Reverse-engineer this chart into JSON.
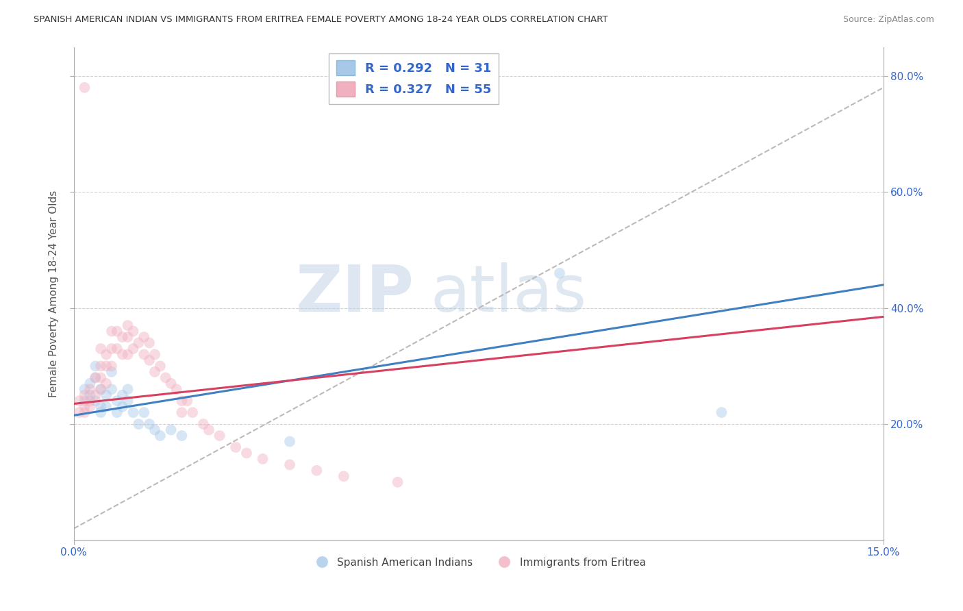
{
  "title": "SPANISH AMERICAN INDIAN VS IMMIGRANTS FROM ERITREA FEMALE POVERTY AMONG 18-24 YEAR OLDS CORRELATION CHART",
  "source": "Source: ZipAtlas.com",
  "ylabel": "Female Poverty Among 18-24 Year Olds",
  "xlim": [
    0.0,
    0.15
  ],
  "ylim": [
    0.0,
    0.85
  ],
  "yticks": [
    0.2,
    0.4,
    0.6,
    0.8
  ],
  "ytick_labels": [
    "20.0%",
    "40.0%",
    "60.0%",
    "80.0%"
  ],
  "xticks": [
    0.0,
    0.15
  ],
  "xtick_labels": [
    "0.0%",
    "15.0%"
  ],
  "watermark_zip": "ZIP",
  "watermark_atlas": "atlas",
  "legend_blue_label": "R = 0.292   N = 31",
  "legend_pink_label": "R = 0.327   N = 55",
  "blue_color": "#a8c8e8",
  "pink_color": "#f0b0c0",
  "blue_line_color": "#4080c0",
  "pink_line_color": "#d84060",
  "dashed_line_color": "#c0b8b8",
  "title_color": "#333333",
  "source_color": "#888888",
  "legend_text_color": "#3366cc",
  "axis_tick_color": "#3366cc",
  "blue_scatter_x": [
    0.002,
    0.002,
    0.003,
    0.003,
    0.004,
    0.004,
    0.004,
    0.005,
    0.005,
    0.005,
    0.006,
    0.006,
    0.007,
    0.007,
    0.008,
    0.008,
    0.009,
    0.009,
    0.01,
    0.01,
    0.011,
    0.012,
    0.013,
    0.014,
    0.015,
    0.016,
    0.018,
    0.02,
    0.04,
    0.09,
    0.12
  ],
  "blue_scatter_y": [
    0.24,
    0.26,
    0.27,
    0.25,
    0.3,
    0.28,
    0.24,
    0.26,
    0.23,
    0.22,
    0.25,
    0.23,
    0.29,
    0.26,
    0.24,
    0.22,
    0.25,
    0.23,
    0.26,
    0.24,
    0.22,
    0.2,
    0.22,
    0.2,
    0.19,
    0.18,
    0.19,
    0.18,
    0.17,
    0.46,
    0.22
  ],
  "pink_scatter_x": [
    0.001,
    0.001,
    0.002,
    0.002,
    0.002,
    0.003,
    0.003,
    0.003,
    0.004,
    0.004,
    0.005,
    0.005,
    0.005,
    0.005,
    0.006,
    0.006,
    0.006,
    0.007,
    0.007,
    0.007,
    0.008,
    0.008,
    0.009,
    0.009,
    0.01,
    0.01,
    0.01,
    0.011,
    0.011,
    0.012,
    0.013,
    0.013,
    0.014,
    0.014,
    0.015,
    0.015,
    0.016,
    0.017,
    0.018,
    0.019,
    0.02,
    0.02,
    0.021,
    0.022,
    0.024,
    0.025,
    0.027,
    0.03,
    0.032,
    0.035,
    0.04,
    0.045,
    0.05,
    0.06,
    0.002
  ],
  "pink_scatter_y": [
    0.22,
    0.24,
    0.25,
    0.23,
    0.22,
    0.24,
    0.26,
    0.23,
    0.28,
    0.25,
    0.33,
    0.3,
    0.28,
    0.26,
    0.32,
    0.3,
    0.27,
    0.36,
    0.33,
    0.3,
    0.36,
    0.33,
    0.35,
    0.32,
    0.37,
    0.35,
    0.32,
    0.36,
    0.33,
    0.34,
    0.35,
    0.32,
    0.34,
    0.31,
    0.32,
    0.29,
    0.3,
    0.28,
    0.27,
    0.26,
    0.24,
    0.22,
    0.24,
    0.22,
    0.2,
    0.19,
    0.18,
    0.16,
    0.15,
    0.14,
    0.13,
    0.12,
    0.11,
    0.1,
    0.78
  ],
  "blue_line_x": [
    0.0,
    0.15
  ],
  "blue_line_y": [
    0.215,
    0.44
  ],
  "pink_line_x": [
    0.0,
    0.15
  ],
  "pink_line_y": [
    0.235,
    0.385
  ],
  "dashed_line_x": [
    0.0,
    0.15
  ],
  "dashed_line_y": [
    0.02,
    0.78
  ],
  "marker_size": 130,
  "marker_alpha": 0.45,
  "line_width": 2.2,
  "background_color": "#ffffff",
  "plot_bg_color": "#ffffff",
  "grid_color": "#d0d0d0"
}
